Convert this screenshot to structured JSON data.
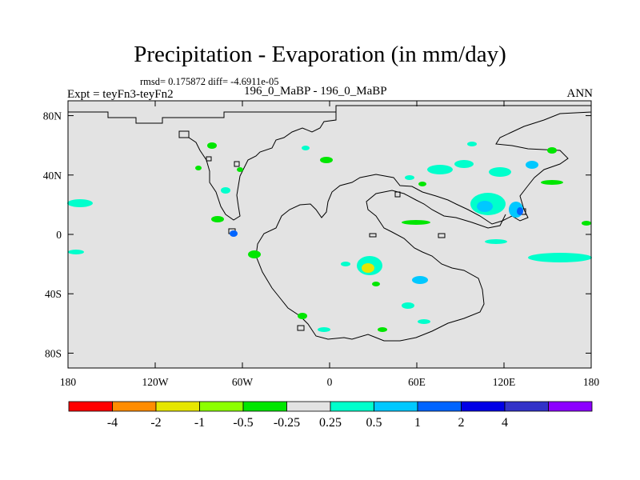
{
  "title": "Precipitation - Evaporation (in mm/day)",
  "stats": "rmsd= 0.175872 diff= -4.6911e-05",
  "expt": "Expt = teyFn3-teyFn2",
  "runs": "196_0_MaBP - 196_0_MaBP",
  "season": "ANN",
  "map": {
    "background_color": "#e3e3e3",
    "lon_ticks": [
      {
        "value": -180,
        "label": "180"
      },
      {
        "value": -120,
        "label": "120W"
      },
      {
        "value": -60,
        "label": "60W"
      },
      {
        "value": 0,
        "label": "0"
      },
      {
        "value": 60,
        "label": "60E"
      },
      {
        "value": 120,
        "label": "120E"
      },
      {
        "value": 180,
        "label": "180"
      }
    ],
    "lat_ticks": [
      {
        "value": 80,
        "label": "80N"
      },
      {
        "value": 40,
        "label": "40N"
      },
      {
        "value": 0,
        "label": "0"
      },
      {
        "value": -40,
        "label": "40S"
      },
      {
        "value": -80,
        "label": "80S"
      }
    ]
  },
  "colorbar": {
    "colors": [
      "#ff0000",
      "#ff8c00",
      "#e6e600",
      "#8cff00",
      "#00e600",
      "#e3e3e3",
      "#00ffcc",
      "#00c8ff",
      "#0064ff",
      "#0000e6",
      "#3232c8",
      "#8c00ff"
    ],
    "labels": [
      "-4",
      "-2",
      "-1",
      "-0.5",
      "-0.25",
      "0.25",
      "0.5",
      "1",
      "2",
      "4"
    ]
  }
}
